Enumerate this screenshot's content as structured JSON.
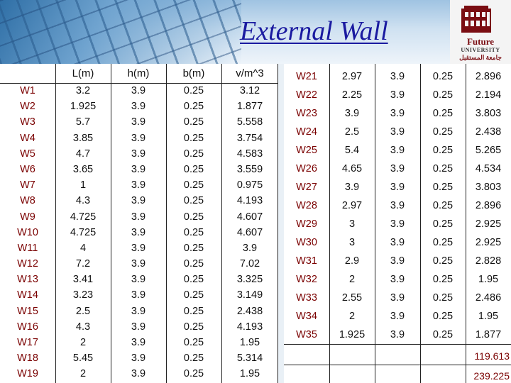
{
  "slide": {
    "title": "External Wall",
    "logo": {
      "main": "Future",
      "sub": "UNIVERSITY",
      "arabic": "جامعة المستقبل"
    }
  },
  "left_table": {
    "headers": [
      "",
      "L(m)",
      "h(m)",
      "b(m)",
      "v/m^3"
    ],
    "rows": [
      [
        "W1",
        "3.2",
        "3.9",
        "0.25",
        "3.12"
      ],
      [
        "W2",
        "1.925",
        "3.9",
        "0.25",
        "1.877"
      ],
      [
        "W3",
        "5.7",
        "3.9",
        "0.25",
        "5.558"
      ],
      [
        "W4",
        "3.85",
        "3.9",
        "0.25",
        "3.754"
      ],
      [
        "W5",
        "4.7",
        "3.9",
        "0.25",
        "4.583"
      ],
      [
        "W6",
        "3.65",
        "3.9",
        "0.25",
        "3.559"
      ],
      [
        "W7",
        "1",
        "3.9",
        "0.25",
        "0.975"
      ],
      [
        "W8",
        "4.3",
        "3.9",
        "0.25",
        "4.193"
      ],
      [
        "W9",
        "4.725",
        "3.9",
        "0.25",
        "4.607"
      ],
      [
        "W10",
        "4.725",
        "3.9",
        "0.25",
        "4.607"
      ],
      [
        "W11",
        "4",
        "3.9",
        "0.25",
        "3.9"
      ],
      [
        "W12",
        "7.2",
        "3.9",
        "0.25",
        "7.02"
      ],
      [
        "W13",
        "3.41",
        "3.9",
        "0.25",
        "3.325"
      ],
      [
        "W14",
        "3.23",
        "3.9",
        "0.25",
        "3.149"
      ],
      [
        "W15",
        "2.5",
        "3.9",
        "0.25",
        "2.438"
      ],
      [
        "W16",
        "4.3",
        "3.9",
        "0.25",
        "4.193"
      ],
      [
        "W17",
        "2",
        "3.9",
        "0.25",
        "1.95"
      ],
      [
        "W18",
        "5.45",
        "3.9",
        "0.25",
        "5.314"
      ],
      [
        "W19",
        "2",
        "3.9",
        "0.25",
        "1.95"
      ]
    ]
  },
  "right_table": {
    "rows": [
      [
        "W21",
        "2.97",
        "3.9",
        "0.25",
        "2.896"
      ],
      [
        "W22",
        "2.25",
        "3.9",
        "0.25",
        "2.194"
      ],
      [
        "W23",
        "3.9",
        "3.9",
        "0.25",
        "3.803"
      ],
      [
        "W24",
        "2.5",
        "3.9",
        "0.25",
        "2.438"
      ],
      [
        "W25",
        "5.4",
        "3.9",
        "0.25",
        "5.265"
      ],
      [
        "W26",
        "4.65",
        "3.9",
        "0.25",
        "4.534"
      ],
      [
        "W27",
        "3.9",
        "3.9",
        "0.25",
        "3.803"
      ],
      [
        "W28",
        "2.97",
        "3.9",
        "0.25",
        "2.896"
      ],
      [
        "W29",
        "3",
        "3.9",
        "0.25",
        "2.925"
      ],
      [
        "W30",
        "3",
        "3.9",
        "0.25",
        "2.925"
      ],
      [
        "W31",
        "2.9",
        "3.9",
        "0.25",
        "2.828"
      ],
      [
        "W32",
        "2",
        "3.9",
        "0.25",
        "1.95"
      ],
      [
        "W33",
        "2.55",
        "3.9",
        "0.25",
        "2.486"
      ],
      [
        "W34",
        "2",
        "3.9",
        "0.25",
        "1.95"
      ],
      [
        "W35",
        "1.925",
        "3.9",
        "0.25",
        "1.877"
      ]
    ],
    "totals": [
      "119.613",
      "239.225"
    ]
  }
}
